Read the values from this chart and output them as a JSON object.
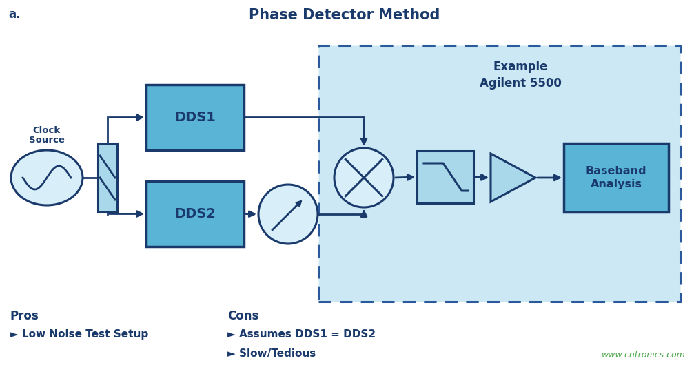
{
  "title": "Phase Detector Method",
  "label_a": "a.",
  "bg_color": "#ffffff",
  "dark_blue": "#1a3a6b",
  "mid_blue": "#5ab4d6",
  "light_blue": "#a8d8ea",
  "very_light_blue": "#d8eef8",
  "light_blue_bg": "#cce8f4",
  "dashed_box_color": "#2a5a9b",
  "pros_title": "Pros",
  "pros_items": [
    "► Low Noise Test Setup"
  ],
  "cons_title": "Cons",
  "cons_items": [
    "► Assumes DDS1 = DDS2",
    "► Slow/Tedious"
  ],
  "watermark": "www.cntronics.com",
  "clock_source_text": "Clock\nSource",
  "dds1_text": "DDS1",
  "dds2_text": "DDS2",
  "baseband_text": "Baseband\nAnalysis",
  "example_text": "Example\nAgilent 5500"
}
